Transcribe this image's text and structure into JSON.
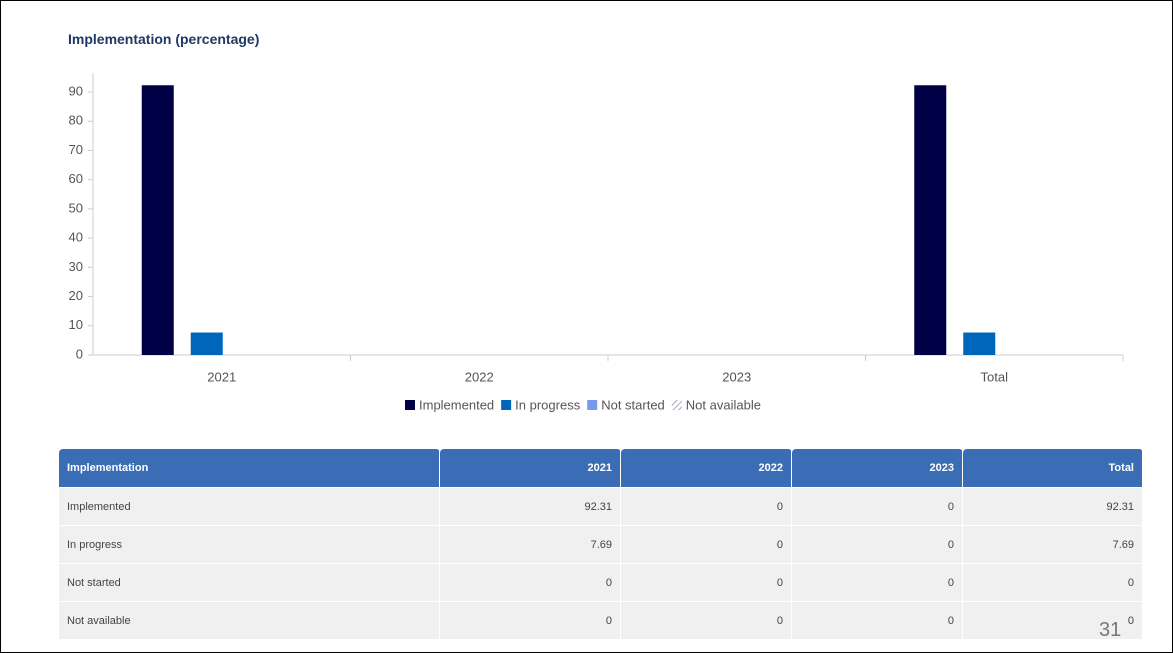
{
  "chart_data": {
    "type": "bar",
    "title": "Implementation (percentage)",
    "categories": [
      "2021",
      "2022",
      "2023",
      "Total"
    ],
    "series": [
      {
        "name": "Implemented",
        "color": "#000046",
        "values": [
          92.31,
          0,
          0,
          92.31
        ]
      },
      {
        "name": "In progress",
        "color": "#0066bb",
        "values": [
          7.69,
          0,
          0,
          7.69
        ]
      },
      {
        "name": "Not started",
        "color": "#7799ee",
        "values": [
          0,
          0,
          0,
          0
        ]
      },
      {
        "name": "Not available",
        "color": "#8888aa",
        "pattern": "hatch",
        "values": [
          0,
          0,
          0,
          0
        ]
      }
    ],
    "ylim": [
      0,
      96.5
    ],
    "yticks": [
      0,
      10,
      20,
      30,
      40,
      50,
      60,
      70,
      80,
      90
    ],
    "legend": "bottom"
  },
  "table": {
    "header": "Implementation"
  },
  "page_number": "31"
}
